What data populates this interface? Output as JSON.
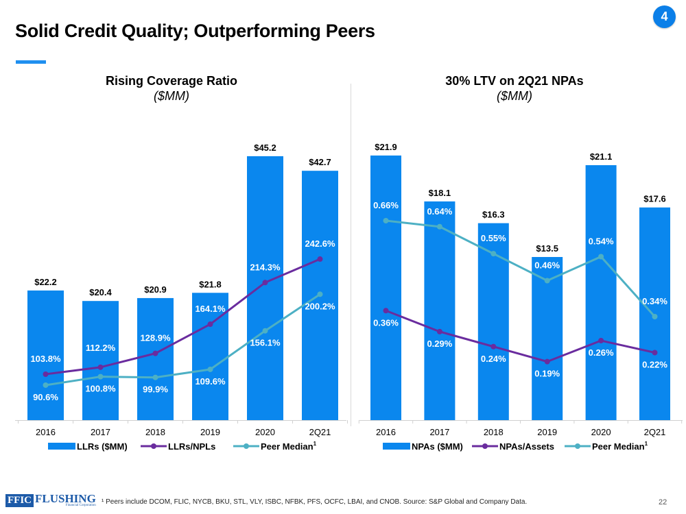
{
  "slide": {
    "title": "Solid Credit Quality; Outperforming Peers",
    "section_badge": "4",
    "page_number": "22",
    "footnote": "¹ Peers include DCOM, FLIC, NYCB, BKU, STL, VLY, ISBC, NFBK, PFS, OCFC, LBAI, and CNOB. Source: S&P Global and Company Data.",
    "logo": {
      "box_text": "FFIC",
      "main_text": "FLUSHING",
      "sub_text": "Financial Corporation"
    }
  },
  "colors": {
    "bar": "#0a87ee",
    "primary_line": "#6a2c9e",
    "peer_line": "#4db0c4",
    "accent": "#1f8ff0"
  },
  "chart_data": [
    {
      "type": "bar",
      "title": "Rising Coverage Ratio",
      "subtitle": "($MM)",
      "categories": [
        "2016",
        "2017",
        "2018",
        "2019",
        "2020",
        "2Q21"
      ],
      "series": [
        {
          "name": "LLRs ($MM)",
          "kind": "bar",
          "values": [
            22.2,
            20.4,
            20.9,
            21.8,
            45.2,
            42.7
          ],
          "labels": [
            "$22.2",
            "$20.4",
            "$20.9",
            "$21.8",
            "$45.2",
            "$42.7"
          ]
        },
        {
          "name": "LLRs/NPLs",
          "kind": "line",
          "values": [
            103.8,
            112.2,
            128.9,
            164.1,
            214.3,
            242.6
          ],
          "labels": [
            "103.8%",
            "112.2%",
            "128.9%",
            "164.1%",
            "214.3%",
            "242.6%"
          ]
        },
        {
          "name": "Peer Median",
          "superscript": "1",
          "kind": "line",
          "values": [
            90.6,
            100.8,
            99.9,
            109.6,
            156.1,
            200.2
          ],
          "labels": [
            "90.6%",
            "100.8%",
            "99.9%",
            "109.6%",
            "156.1%",
            "200.2%"
          ]
        }
      ],
      "legend": [
        "LLRs ($MM)",
        "LLRs/NPLs",
        "Peer Median"
      ],
      "legend_position": "bottom",
      "grid": false
    },
    {
      "type": "bar",
      "title": "30% LTV on 2Q21 NPAs",
      "subtitle": "($MM)",
      "categories": [
        "2016",
        "2017",
        "2018",
        "2019",
        "2020",
        "2Q21"
      ],
      "series": [
        {
          "name": "NPAs ($MM)",
          "kind": "bar",
          "values": [
            21.9,
            18.1,
            16.3,
            13.5,
            21.1,
            17.6
          ],
          "labels": [
            "$21.9",
            "$18.1",
            "$16.3",
            "$13.5",
            "$21.1",
            "$17.6"
          ]
        },
        {
          "name": "NPAs/Assets",
          "kind": "line",
          "values": [
            0.36,
            0.29,
            0.24,
            0.19,
            0.26,
            0.22
          ],
          "labels": [
            "0.36%",
            "0.29%",
            "0.24%",
            "0.19%",
            "0.26%",
            "0.22%"
          ]
        },
        {
          "name": "Peer Median",
          "superscript": "1",
          "kind": "line",
          "values": [
            0.66,
            0.64,
            0.55,
            0.46,
            0.54,
            0.34
          ],
          "labels": [
            "0.66%",
            "0.64%",
            "0.55%",
            "0.46%",
            "0.54%",
            "0.34%"
          ]
        }
      ],
      "legend": [
        "NPAs ($MM)",
        "NPAs/Assets",
        "Peer Median"
      ],
      "legend_position": "bottom",
      "grid": false
    }
  ]
}
